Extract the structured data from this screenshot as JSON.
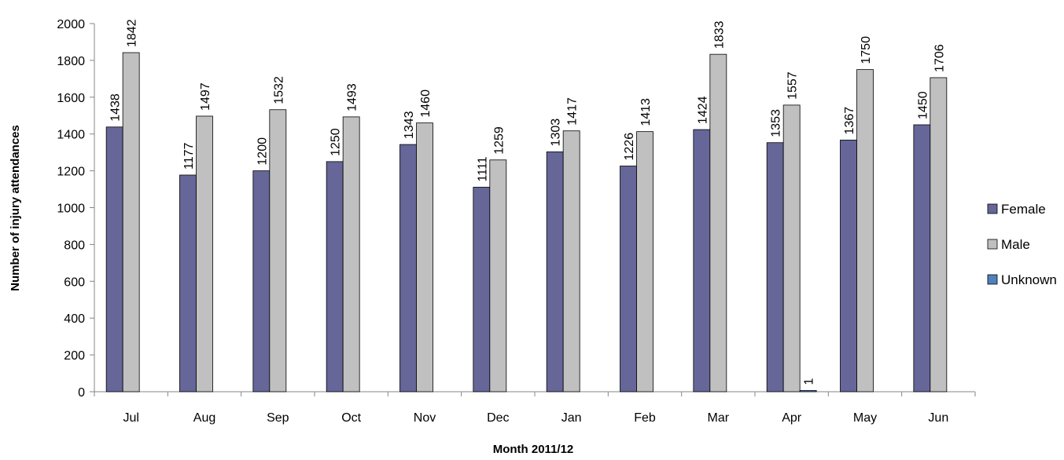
{
  "chart_data": {
    "type": "bar",
    "title": "",
    "xlabel": "Month 2011/12",
    "ylabel": "Number of injury attendances",
    "categories": [
      "Jul",
      "Aug",
      "Sep",
      "Oct",
      "Nov",
      "Dec",
      "Jan",
      "Feb",
      "Mar",
      "Apr",
      "May",
      "Jun"
    ],
    "series": [
      {
        "name": "Female",
        "color": "#666699",
        "values": [
          1438,
          1177,
          1200,
          1250,
          1343,
          1111,
          1303,
          1226,
          1424,
          1353,
          1367,
          1450
        ]
      },
      {
        "name": "Male",
        "color": "#c0c0c0",
        "values": [
          1842,
          1497,
          1532,
          1493,
          1460,
          1259,
          1417,
          1413,
          1833,
          1557,
          1750,
          1706
        ]
      },
      {
        "name": "Unknown",
        "color": "#4f81bd",
        "values": [
          null,
          null,
          null,
          null,
          null,
          null,
          null,
          null,
          null,
          1,
          null,
          null
        ]
      }
    ],
    "ylim": [
      0,
      2000
    ],
    "yticks": [
      "0",
      "200",
      "400",
      "600",
      "800",
      "1000",
      "1200",
      "1400",
      "1600",
      "1800",
      "2000"
    ],
    "grid": false,
    "data_labels": true,
    "legend_position": "right"
  }
}
